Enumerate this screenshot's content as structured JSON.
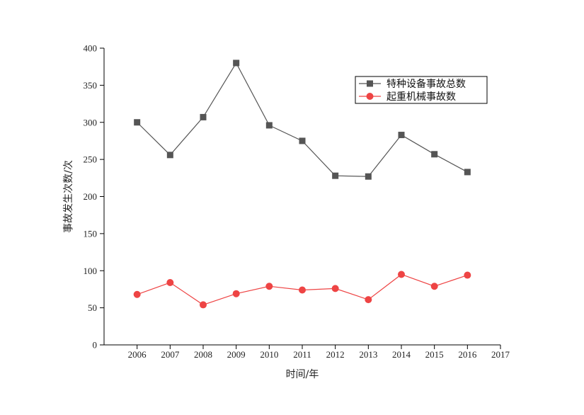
{
  "chart_data": {
    "type": "line",
    "title": "",
    "xlabel": "时间/年",
    "ylabel": "事故发生次数/次",
    "x": [
      2006,
      2007,
      2008,
      2009,
      2010,
      2011,
      2012,
      2013,
      2014,
      2015,
      2016
    ],
    "x_ticks": [
      "2006",
      "2007",
      "2008",
      "2009",
      "2010",
      "2011",
      "2012",
      "2013",
      "2014",
      "2015",
      "2016",
      "2017"
    ],
    "y_ticks": [
      "0",
      "50",
      "100",
      "150",
      "200",
      "250",
      "300",
      "350",
      "400"
    ],
    "xlim": [
      2005,
      2017
    ],
    "ylim": [
      0,
      400
    ],
    "grid": false,
    "legend_position": "top-right",
    "series": [
      {
        "name": "特种设备事故总数",
        "color": "#555555",
        "marker": "square",
        "values": [
          300,
          256,
          307,
          380,
          296,
          275,
          228,
          227,
          283,
          257,
          233
        ]
      },
      {
        "name": "起重机械事故数",
        "color": "#ee4444",
        "marker": "circle",
        "values": [
          68,
          84,
          54,
          69,
          79,
          74,
          76,
          61,
          95,
          79,
          94
        ]
      }
    ]
  }
}
